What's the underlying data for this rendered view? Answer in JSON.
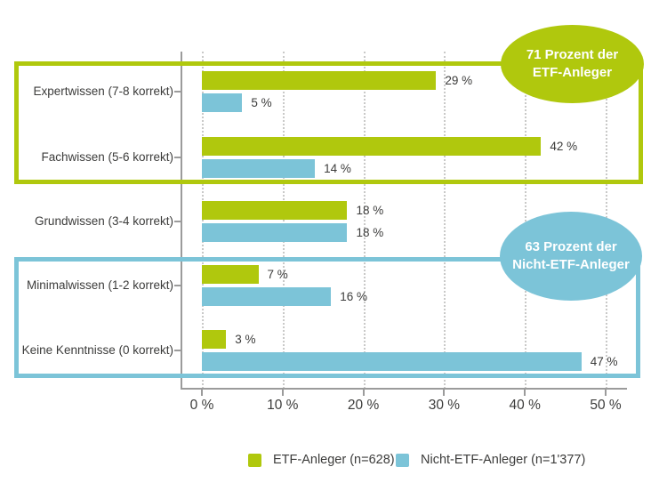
{
  "chart_data": {
    "type": "bar",
    "orientation": "horizontal",
    "categories": [
      "Expertwissen (7-8 korrekt)",
      "Fachwissen (5-6 korrekt)",
      "Grundwissen (3-4 korrekt)",
      "Minimalwissen (1-2 korrekt)",
      "Keine Kenntnisse (0 korrekt)"
    ],
    "series": [
      {
        "name": "ETF-Anleger (n=628)",
        "color": "#b0c80d",
        "values": [
          29,
          42,
          18,
          7,
          3
        ],
        "value_labels": [
          "29 %",
          "42 %",
          "18 %",
          "7 %",
          "3 %"
        ]
      },
      {
        "name": "Nicht-ETF-Anleger (n=1'377)",
        "color": "#7cc4d8",
        "values": [
          5,
          14,
          18,
          16,
          47
        ],
        "value_labels": [
          "5 %",
          "14 %",
          "18 %",
          "16 %",
          "47 %"
        ]
      }
    ],
    "x_axis": {
      "min": 0,
      "max": 50,
      "tick_values": [
        0,
        10,
        20,
        30,
        40,
        50
      ],
      "tick_labels": [
        "0 %",
        "10 %",
        "20 %",
        "30 %",
        "40 %",
        "50 %"
      ]
    },
    "grid": {
      "direction": "vertical",
      "style": "dotted",
      "color": "#c9c9c8"
    },
    "annotations": [
      {
        "line1": "71 Prozent der",
        "line2": "ETF-Anleger",
        "color": "#b0c80d",
        "text_color": "#ffffff"
      },
      {
        "line1": "63 Prozent der",
        "line2": "Nicht-ETF-Anleger",
        "color": "#7cc4d8",
        "text_color": "#ffffff"
      }
    ],
    "highlight_boxes": [
      {
        "rows": [
          "Expertwissen (7-8 korrekt)",
          "Fachwissen (5-6 korrekt)"
        ],
        "color": "#b0c80d"
      },
      {
        "rows": [
          "Minimalwissen (1-2 korrekt)",
          "Keine Kenntnisse (0 korrekt)"
        ],
        "color": "#7cc4d8"
      }
    ],
    "legend_position": "bottom"
  },
  "legend": {
    "items": [
      {
        "label": "ETF-Anleger (n=628)",
        "color": "#b0c80d"
      },
      {
        "label": "Nicht-ETF-Anleger (n=1'377)",
        "color": "#7cc4d8"
      }
    ]
  },
  "colors": {
    "axis": "#9b9b9b",
    "grid": "#c9c9c8",
    "text": "#3c3c3b",
    "background": "#ffffff"
  }
}
